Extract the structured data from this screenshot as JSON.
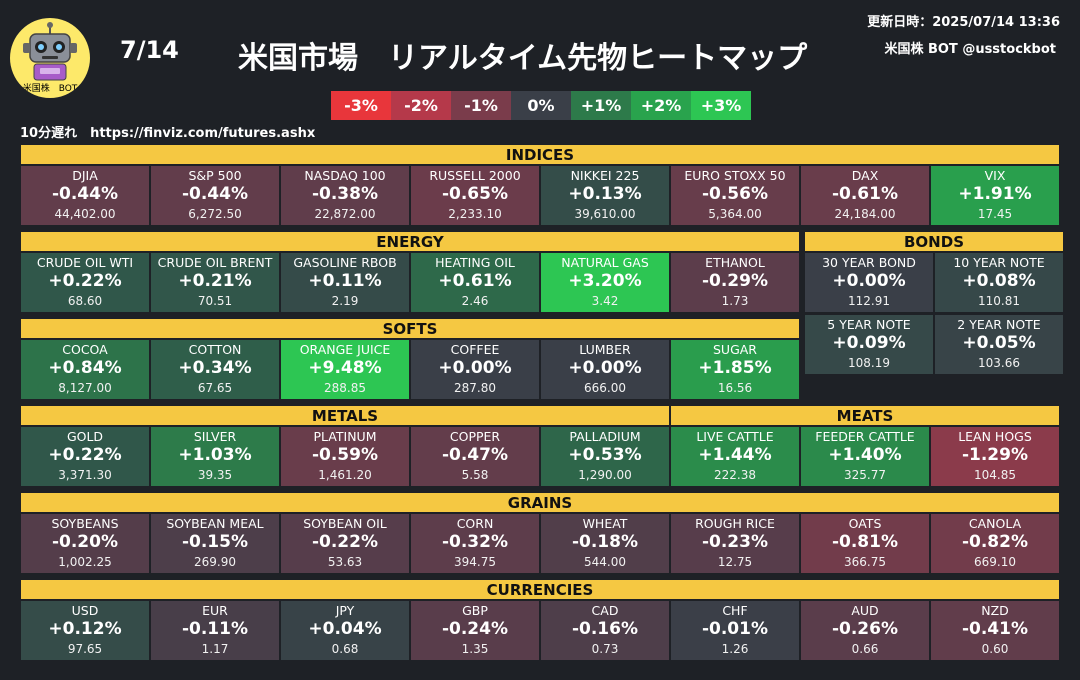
{
  "header": {
    "date": "7/14",
    "title": "米国市場　リアルタイム先物ヒートマップ",
    "updated": "更新日時：2025/07/14 13:36",
    "bot_name": "米国株 BOT @usstockbot",
    "logo_label": "米国株　BOT",
    "delay_note": "10分遅れ　https://finviz.com/futures.ashx"
  },
  "legend": [
    {
      "label": "-3%",
      "color": "#e8363b"
    },
    {
      "label": "-2%",
      "color": "#b5394a"
    },
    {
      "label": "-1%",
      "color": "#7a3c4b"
    },
    {
      "label": "0%",
      "color": "#3a3f48"
    },
    {
      "label": "+1%",
      "color": "#2d7a4a"
    },
    {
      "label": "+2%",
      "color": "#29a34d"
    },
    {
      "label": "+3%",
      "color": "#2dc653"
    }
  ],
  "sections": [
    {
      "title": "INDICES",
      "tiles": [
        {
          "name": "DJIA",
          "change": "-0.44%",
          "price": "44,402.00",
          "pct": -0.44
        },
        {
          "name": "S&P 500",
          "change": "-0.44%",
          "price": "6,272.50",
          "pct": -0.44
        },
        {
          "name": "NASDAQ 100",
          "change": "-0.38%",
          "price": "22,872.00",
          "pct": -0.38
        },
        {
          "name": "RUSSELL 2000",
          "change": "-0.65%",
          "price": "2,233.10",
          "pct": -0.65
        },
        {
          "name": "NIKKEI 225",
          "change": "+0.13%",
          "price": "39,610.00",
          "pct": 0.13
        },
        {
          "name": "EURO STOXX 50",
          "change": "-0.56%",
          "price": "5,364.00",
          "pct": -0.56
        },
        {
          "name": "DAX",
          "change": "-0.61%",
          "price": "24,184.00",
          "pct": -0.61
        },
        {
          "name": "VIX",
          "change": "+1.91%",
          "price": "17.45",
          "pct": 1.91
        }
      ]
    },
    {
      "title": "ENERGY",
      "tiles": [
        {
          "name": "CRUDE OIL WTI",
          "change": "+0.22%",
          "price": "68.60",
          "pct": 0.22
        },
        {
          "name": "CRUDE OIL BRENT",
          "change": "+0.21%",
          "price": "70.51",
          "pct": 0.21
        },
        {
          "name": "GASOLINE RBOB",
          "change": "+0.11%",
          "price": "2.19",
          "pct": 0.11
        },
        {
          "name": "HEATING OIL",
          "change": "+0.61%",
          "price": "2.46",
          "pct": 0.61
        },
        {
          "name": "NATURAL GAS",
          "change": "+3.20%",
          "price": "3.42",
          "pct": 3.2
        },
        {
          "name": "ETHANOL",
          "change": "-0.29%",
          "price": "1.73",
          "pct": -0.29
        }
      ]
    },
    {
      "title": "BONDS",
      "tiles": [
        {
          "name": "30 YEAR BOND",
          "change": "+0.00%",
          "price": "112.91",
          "pct": 0.0
        },
        {
          "name": "10 YEAR NOTE",
          "change": "+0.08%",
          "price": "110.81",
          "pct": 0.08
        },
        {
          "name": "5 YEAR NOTE",
          "change": "+0.09%",
          "price": "108.19",
          "pct": 0.09
        },
        {
          "name": "2 YEAR NOTE",
          "change": "+0.05%",
          "price": "103.66",
          "pct": 0.05
        }
      ]
    },
    {
      "title": "SOFTS",
      "tiles": [
        {
          "name": "COCOA",
          "change": "+0.84%",
          "price": "8,127.00",
          "pct": 0.84
        },
        {
          "name": "COTTON",
          "change": "+0.34%",
          "price": "67.65",
          "pct": 0.34
        },
        {
          "name": "ORANGE JUICE",
          "change": "+9.48%",
          "price": "288.85",
          "pct": 9.48
        },
        {
          "name": "COFFEE",
          "change": "+0.00%",
          "price": "287.80",
          "pct": 0.0
        },
        {
          "name": "LUMBER",
          "change": "+0.00%",
          "price": "666.00",
          "pct": 0.0
        },
        {
          "name": "SUGAR",
          "change": "+1.85%",
          "price": "16.56",
          "pct": 1.85
        }
      ]
    },
    {
      "title": "METALS",
      "tiles": [
        {
          "name": "GOLD",
          "change": "+0.22%",
          "price": "3,371.30",
          "pct": 0.22
        },
        {
          "name": "SILVER",
          "change": "+1.03%",
          "price": "39.35",
          "pct": 1.03
        },
        {
          "name": "PLATINUM",
          "change": "-0.59%",
          "price": "1,461.20",
          "pct": -0.59
        },
        {
          "name": "COPPER",
          "change": "-0.47%",
          "price": "5.58",
          "pct": -0.47
        },
        {
          "name": "PALLADIUM",
          "change": "+0.53%",
          "price": "1,290.00",
          "pct": 0.53
        }
      ]
    },
    {
      "title": "MEATS",
      "tiles": [
        {
          "name": "LIVE CATTLE",
          "change": "+1.44%",
          "price": "222.38",
          "pct": 1.44
        },
        {
          "name": "FEEDER CATTLE",
          "change": "+1.40%",
          "price": "325.77",
          "pct": 1.4
        },
        {
          "name": "LEAN HOGS",
          "change": "-1.29%",
          "price": "104.85",
          "pct": -1.29
        }
      ]
    },
    {
      "title": "GRAINS",
      "tiles": [
        {
          "name": "SOYBEANS",
          "change": "-0.20%",
          "price": "1,002.25",
          "pct": -0.2
        },
        {
          "name": "SOYBEAN MEAL",
          "change": "-0.15%",
          "price": "269.90",
          "pct": -0.15
        },
        {
          "name": "SOYBEAN OIL",
          "change": "-0.22%",
          "price": "53.63",
          "pct": -0.22
        },
        {
          "name": "CORN",
          "change": "-0.32%",
          "price": "394.75",
          "pct": -0.32
        },
        {
          "name": "WHEAT",
          "change": "-0.18%",
          "price": "544.00",
          "pct": -0.18
        },
        {
          "name": "ROUGH RICE",
          "change": "-0.23%",
          "price": "12.75",
          "pct": -0.23
        },
        {
          "name": "OATS",
          "change": "-0.81%",
          "price": "366.75",
          "pct": -0.81
        },
        {
          "name": "CANOLA",
          "change": "-0.82%",
          "price": "669.10",
          "pct": -0.82
        }
      ]
    },
    {
      "title": "CURRENCIES",
      "tiles": [
        {
          "name": "USD",
          "change": "+0.12%",
          "price": "97.65",
          "pct": 0.12
        },
        {
          "name": "EUR",
          "change": "-0.11%",
          "price": "1.17",
          "pct": -0.11
        },
        {
          "name": "JPY",
          "change": "+0.04%",
          "price": "0.68",
          "pct": 0.04
        },
        {
          "name": "GBP",
          "change": "-0.24%",
          "price": "1.35",
          "pct": -0.24
        },
        {
          "name": "CAD",
          "change": "-0.16%",
          "price": "0.73",
          "pct": -0.16
        },
        {
          "name": "CHF",
          "change": "-0.01%",
          "price": "1.26",
          "pct": -0.01
        },
        {
          "name": "AUD",
          "change": "-0.26%",
          "price": "0.66",
          "pct": -0.26
        },
        {
          "name": "NZD",
          "change": "-0.41%",
          "price": "0.60",
          "pct": -0.41
        }
      ]
    }
  ]
}
